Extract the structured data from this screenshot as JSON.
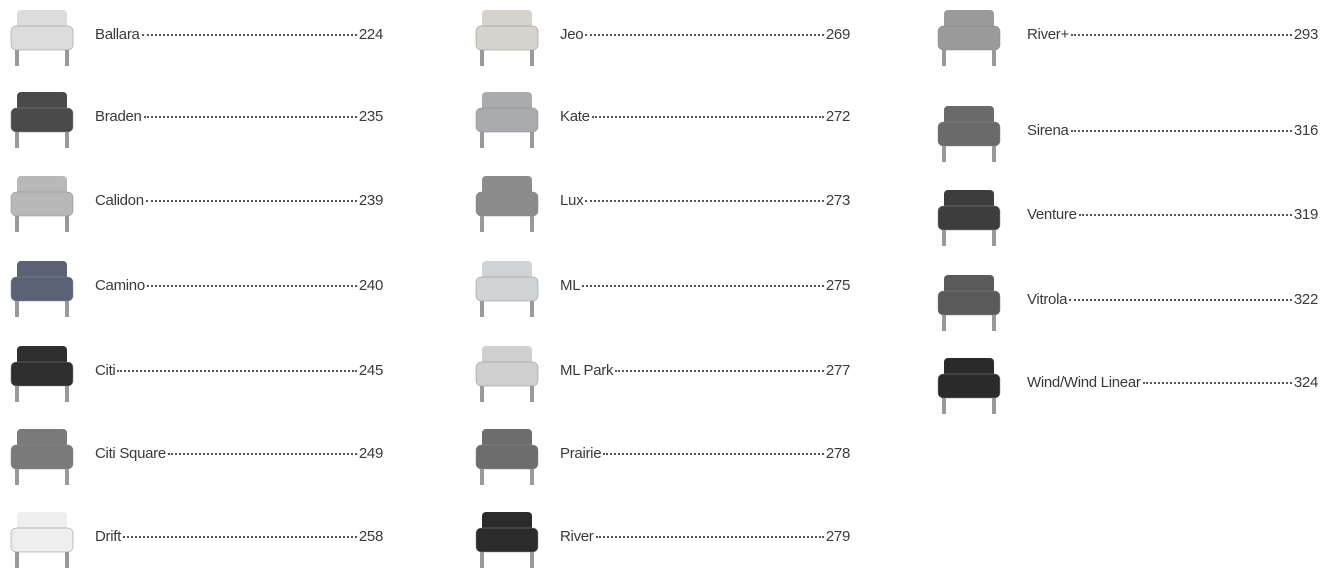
{
  "columns": [
    {
      "entries": [
        {
          "name": "Ballara",
          "page": "224"
        },
        {
          "name": "Braden",
          "page": "235"
        },
        {
          "name": "Calidon",
          "page": "239"
        },
        {
          "name": "Camino",
          "page": "240"
        },
        {
          "name": "Citi",
          "page": "245"
        },
        {
          "name": "Citi Square",
          "page": "249"
        },
        {
          "name": "Drift",
          "page": "258"
        }
      ]
    },
    {
      "entries": [
        {
          "name": "Jeo",
          "page": "269"
        },
        {
          "name": "Kate",
          "page": "272"
        },
        {
          "name": "Lux",
          "page": "273"
        },
        {
          "name": "ML",
          "page": "275"
        },
        {
          "name": "ML Park",
          "page": "277"
        },
        {
          "name": "Prairie",
          "page": "278"
        },
        {
          "name": "River",
          "page": "279"
        }
      ]
    },
    {
      "entries": [
        {
          "name": "River+",
          "page": "293"
        },
        {
          "name": "Sirena",
          "page": "316"
        },
        {
          "name": "Venture",
          "page": "319"
        },
        {
          "name": "Vitrola",
          "page": "322"
        },
        {
          "name": "Wind/Wind Linear",
          "page": "324"
        }
      ]
    }
  ]
}
